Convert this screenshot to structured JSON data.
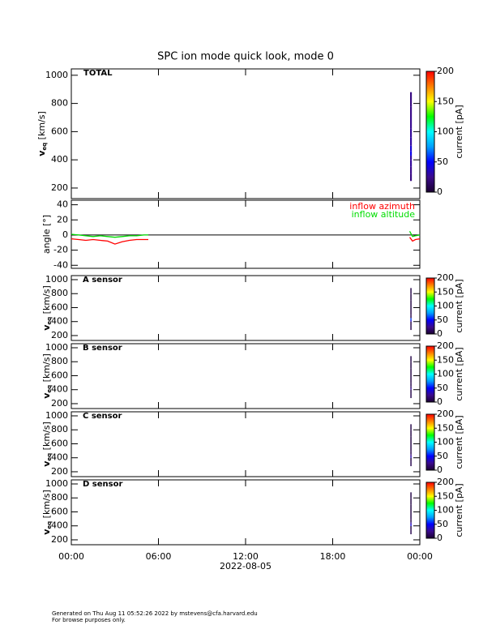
{
  "chart_data": {
    "title": "SPC ion mode quick look, mode 0",
    "xlim": [
      0,
      24
    ],
    "xticks": [
      {
        "value": 0,
        "label": "00:00"
      },
      {
        "value": 6,
        "label": "06:00"
      },
      {
        "value": 12,
        "label": "12:00"
      },
      {
        "value": 18,
        "label": "18:00"
      },
      {
        "value": 24,
        "label": "00:00"
      }
    ],
    "xlabel": "2022-08-05",
    "colormap": [
      "#1a0030",
      "#3b0a8c",
      "#0000ff",
      "#00a0ff",
      "#00ffff",
      "#00ff00",
      "#ffff00",
      "#ff8000",
      "#ff0000"
    ],
    "panels": [
      {
        "type": "spectrogram",
        "label": "TOTAL",
        "ylabel": {
          "main": "v",
          "sub": "eq",
          "rest": " [km/s]"
        },
        "ylim": [
          125,
          1045
        ],
        "yticks": [
          200,
          400,
          600,
          800,
          1000
        ],
        "time_bins": [
          23.33,
          23.45
        ],
        "bins": [
          250,
          300,
          350,
          400,
          430,
          460,
          500,
          560,
          620,
          700,
          780,
          880
        ],
        "values": [
          22,
          25,
          28,
          30,
          45,
          40,
          30,
          28,
          26,
          24,
          22
        ],
        "colorbar": {
          "label": "current [pA]",
          "lim": [
            0,
            200
          ],
          "ticks": [
            0,
            50,
            100,
            150,
            200
          ]
        }
      },
      {
        "type": "line",
        "ylabel": "angle [°]",
        "ylim": [
          -44,
          46
        ],
        "yticks": [
          -40,
          -20,
          0,
          20,
          40
        ],
        "zero_line": 0,
        "x": [
          0,
          0.5,
          1,
          1.5,
          2,
          2.5,
          3,
          3.5,
          4,
          4.5,
          5,
          5.3,
          14,
          23.3,
          23.5,
          23.7,
          24
        ],
        "series": [
          {
            "name": "inflow azimuth",
            "color": "#ff0000",
            "values": [
              -5,
              -6,
              -7,
              -6,
              -7,
              -8,
              -12,
              -9,
              -7,
              -6,
              -6,
              -6,
              null,
              -3,
              -8,
              -6,
              -5
            ]
          },
          {
            "name": "inflow altitude",
            "color": "#00dd00",
            "values": [
              1,
              0,
              -1,
              -2,
              -1,
              -2,
              -3,
              -2,
              -1,
              -1,
              0,
              0,
              null,
              5,
              -2,
              -1,
              0
            ]
          }
        ]
      },
      {
        "type": "spectrogram",
        "label": "A sensor",
        "ylabel": {
          "main": "v",
          "sub": "eq",
          "rest": " [km/s]"
        },
        "ylim": [
          130,
          1058
        ],
        "yticks": [
          200,
          400,
          600,
          800,
          1000
        ],
        "time_bins": [
          23.35,
          23.43
        ],
        "bins": [
          280,
          350,
          400,
          420,
          450,
          500,
          600,
          700,
          800,
          880
        ],
        "values": [
          8,
          6,
          40,
          60,
          8,
          6,
          5,
          5,
          6
        ],
        "colorbar": {
          "label": "current [pA]",
          "lim": [
            0,
            200
          ],
          "ticks": [
            0,
            50,
            100,
            150,
            200
          ]
        }
      },
      {
        "type": "spectrogram",
        "label": "B sensor",
        "ylabel": {
          "main": "v",
          "sub": "eq",
          "rest": " [km/s]"
        },
        "ylim": [
          130,
          1058
        ],
        "yticks": [
          200,
          400,
          600,
          800,
          1000
        ],
        "time_bins": [
          23.35,
          23.43
        ],
        "bins": [
          280,
          350,
          400,
          420,
          450,
          500,
          600,
          700,
          800,
          880
        ],
        "values": [
          7,
          6,
          30,
          15,
          7,
          6,
          5,
          5,
          6
        ],
        "colorbar": {
          "label": "current [pA]",
          "lim": [
            0,
            200
          ],
          "ticks": [
            0,
            50,
            100,
            150,
            200
          ]
        }
      },
      {
        "type": "spectrogram",
        "label": "C sensor",
        "ylabel": {
          "main": "v",
          "sub": "eq",
          "rest": " [km/s]"
        },
        "ylim": [
          130,
          1058
        ],
        "yticks": [
          200,
          400,
          600,
          800,
          1000
        ],
        "time_bins": [
          23.35,
          23.43
        ],
        "bins": [
          280,
          350,
          400,
          420,
          450,
          500,
          600,
          700,
          800,
          880
        ],
        "values": [
          8,
          6,
          35,
          25,
          8,
          6,
          5,
          5,
          6
        ],
        "colorbar": {
          "label": "current [pA]",
          "lim": [
            0,
            200
          ],
          "ticks": [
            0,
            50,
            100,
            150,
            200
          ]
        }
      },
      {
        "type": "spectrogram",
        "label": "D sensor",
        "ylabel": {
          "main": "v",
          "sub": "eq",
          "rest": " [km/s]"
        },
        "ylim": [
          130,
          1058
        ],
        "yticks": [
          200,
          400,
          600,
          800,
          1000
        ],
        "time_bins": [
          23.35,
          23.43
        ],
        "bins": [
          280,
          350,
          400,
          420,
          450,
          500,
          600,
          700,
          800,
          880
        ],
        "values": [
          8,
          6,
          45,
          30,
          8,
          6,
          5,
          5,
          6
        ],
        "colorbar": {
          "label": "current [pA]",
          "lim": [
            0,
            200
          ],
          "ticks": [
            0,
            50,
            100,
            150,
            200
          ]
        }
      }
    ]
  },
  "footer": {
    "line1": "Generated on Thu Aug 11 05:52:26 2022 by mstevens@cfa.harvard.edu",
    "line2": "For browse purposes only."
  }
}
